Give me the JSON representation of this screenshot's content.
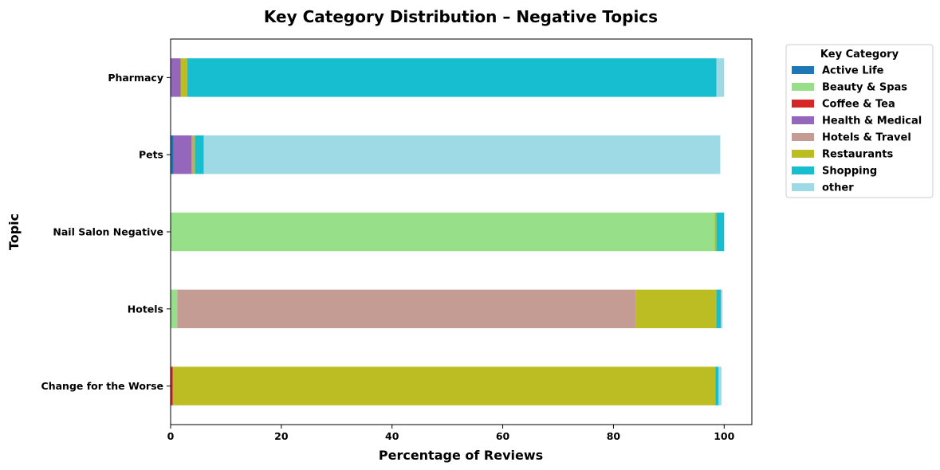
{
  "chart_data": {
    "type": "bar",
    "orientation": "horizontal",
    "stacked": true,
    "title": "Key Category Distribution – Negative Topics",
    "xlabel": "Percentage of Reviews",
    "ylabel": "Topic",
    "xlim": [
      0,
      105
    ],
    "xticks": [
      0,
      20,
      40,
      60,
      80,
      100
    ],
    "grid": false,
    "legend_title": "Key Category",
    "legend_position": "outside-top-right",
    "categories": [
      "Change for the Worse",
      "Hotels",
      "Nail Salon Negative",
      "Pets",
      "Pharmacy"
    ],
    "series": [
      {
        "name": "Active Life",
        "color": "#1f77b4",
        "values": [
          0.0,
          0.0,
          0.0,
          0.5,
          0.0
        ]
      },
      {
        "name": "Beauty & Spas",
        "color": "#98df8a",
        "values": [
          0.0,
          1.2,
          98.3,
          0.0,
          0.0
        ]
      },
      {
        "name": "Coffee & Tea",
        "color": "#d62728",
        "values": [
          0.4,
          0.0,
          0.0,
          0.0,
          0.0
        ]
      },
      {
        "name": "Health & Medical",
        "color": "#9467bd",
        "values": [
          0.0,
          0.0,
          0.0,
          3.3,
          1.8
        ]
      },
      {
        "name": "Hotels & Travel",
        "color": "#c49c94",
        "values": [
          0.0,
          82.8,
          0.0,
          0.3,
          0.0
        ]
      },
      {
        "name": "Restaurants",
        "color": "#bcbd22",
        "values": [
          98.0,
          14.6,
          0.3,
          0.3,
          1.2
        ]
      },
      {
        "name": "Shopping",
        "color": "#17becf",
        "values": [
          0.6,
          0.8,
          1.4,
          1.6,
          95.6
        ]
      },
      {
        "name": "other",
        "color": "#9edae5",
        "values": [
          0.5,
          0.3,
          0.0,
          93.3,
          1.4
        ]
      }
    ]
  }
}
